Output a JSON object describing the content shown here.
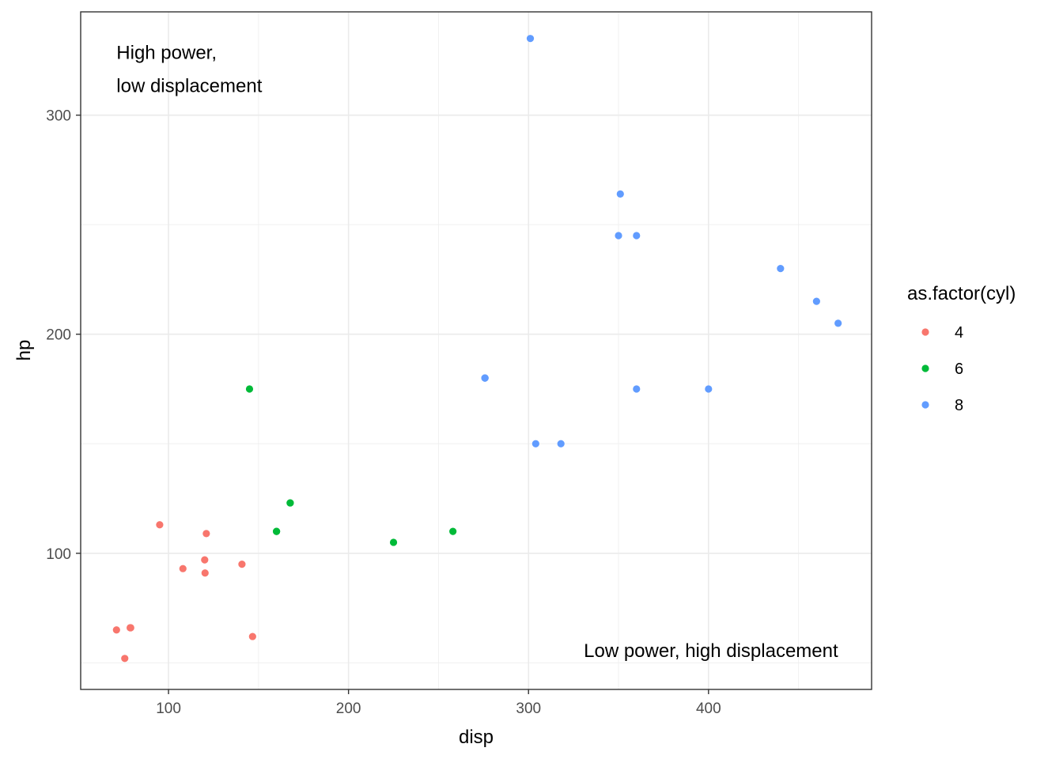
{
  "chart_data": {
    "type": "scatter",
    "xlabel": "disp",
    "ylabel": "hp",
    "xlim": [
      51.2,
      490.6
    ],
    "ylim": [
      37.85,
      347.15
    ],
    "x_ticks": [
      100,
      200,
      300,
      400
    ],
    "y_ticks": [
      100,
      200,
      300
    ],
    "x_tick_labels": [
      "100",
      "200",
      "300",
      "400"
    ],
    "y_tick_labels": [
      "100",
      "200",
      "300"
    ],
    "grid": true,
    "legend": {
      "title": "as.factor(cyl)",
      "position": "right"
    },
    "series": [
      {
        "name": "4",
        "color": "#F8766D",
        "points": [
          [
            108,
            93
          ],
          [
            146.7,
            62
          ],
          [
            140.8,
            95
          ],
          [
            78.7,
            66
          ],
          [
            75.7,
            52
          ],
          [
            71.1,
            65
          ],
          [
            120.1,
            97
          ],
          [
            79,
            66
          ],
          [
            120.3,
            91
          ],
          [
            95.1,
            113
          ],
          [
            121,
            109
          ]
        ]
      },
      {
        "name": "6",
        "color": "#00BA38",
        "points": [
          [
            160,
            110
          ],
          [
            160,
            110
          ],
          [
            258,
            110
          ],
          [
            225,
            105
          ],
          [
            167.6,
            123
          ],
          [
            167.6,
            123
          ],
          [
            145,
            175
          ]
        ]
      },
      {
        "name": "8",
        "color": "#619CFF",
        "points": [
          [
            360,
            175
          ],
          [
            360,
            245
          ],
          [
            275.8,
            180
          ],
          [
            275.8,
            180
          ],
          [
            275.8,
            180
          ],
          [
            472,
            205
          ],
          [
            460,
            215
          ],
          [
            440,
            230
          ],
          [
            318,
            150
          ],
          [
            304,
            150
          ],
          [
            350,
            245
          ],
          [
            400,
            175
          ],
          [
            351,
            264
          ],
          [
            301,
            335
          ]
        ]
      }
    ],
    "annotations": [
      {
        "lines": [
          "High power,",
          "low displacement"
        ],
        "x": 71.1,
        "y": 335,
        "anchor": "top-left"
      },
      {
        "lines": [
          "Low power, high displacement"
        ],
        "x": 472,
        "y": 52,
        "anchor": "bottom-right"
      }
    ]
  }
}
